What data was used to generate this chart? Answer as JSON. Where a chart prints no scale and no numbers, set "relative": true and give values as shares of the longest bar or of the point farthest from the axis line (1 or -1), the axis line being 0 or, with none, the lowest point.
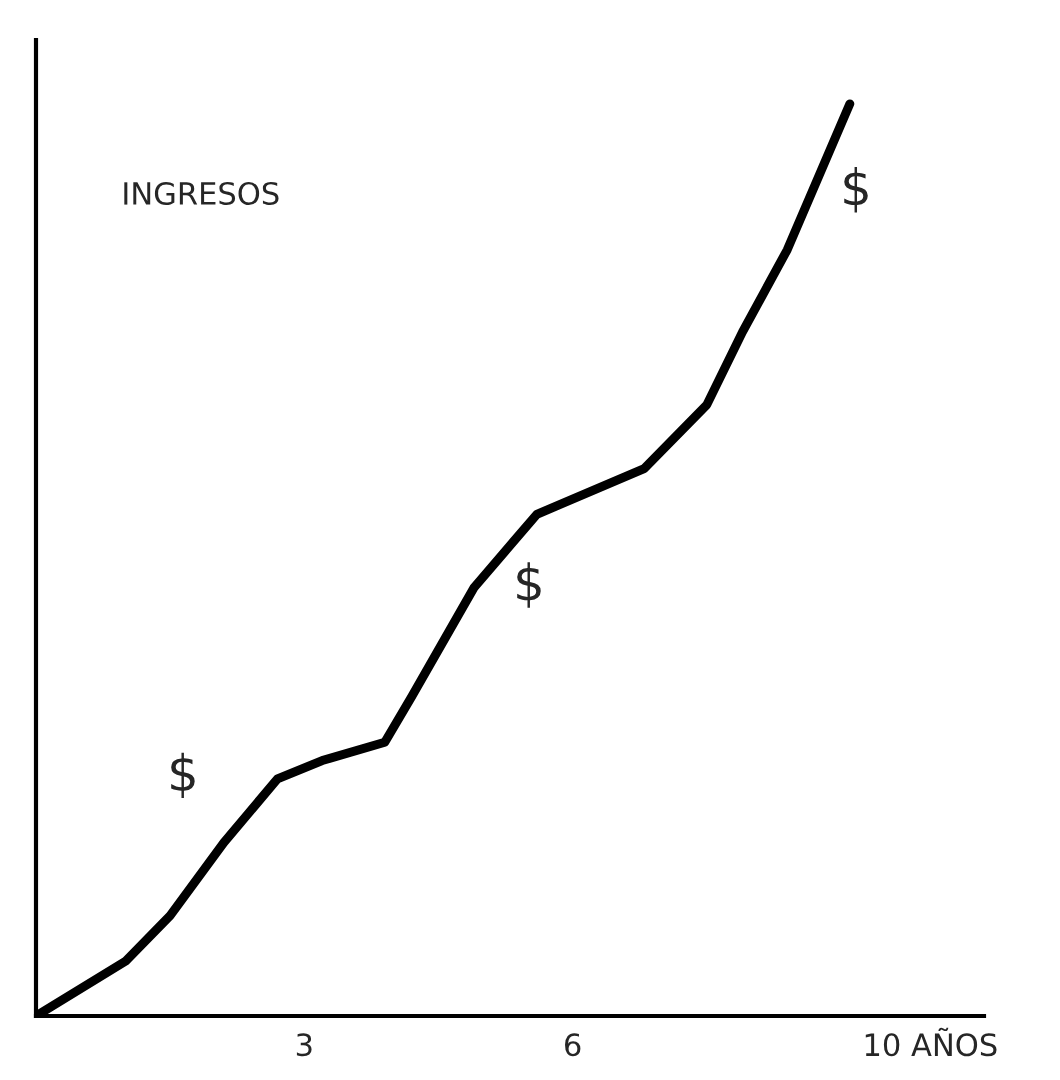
{
  "chart_data": {
    "type": "line",
    "relative": true,
    "ylabel": "INGRESOS",
    "x": [
      0,
      1.0,
      1.5,
      2.1,
      2.7,
      3.2,
      3.9,
      4.2,
      4.9,
      5.6,
      6.8,
      7.5,
      7.9,
      8.4,
      9.1
    ],
    "series": [
      {
        "color": "#000000",
        "values": [
          0,
          0.06,
          0.11,
          0.19,
          0.26,
          0.28,
          0.3,
          0.35,
          0.47,
          0.55,
          0.6,
          0.67,
          0.75,
          0.84,
          1.0
        ]
      }
    ],
    "xlim": [
      0,
      10.6
    ],
    "xticks": [
      3,
      6,
      {
        "value": 10,
        "label": "10 AÑOS"
      }
    ],
    "annotations": [
      "$",
      "$",
      "$"
    ],
    "grid": false,
    "legend": false,
    "marker": "none",
    "line_style": "solid"
  }
}
